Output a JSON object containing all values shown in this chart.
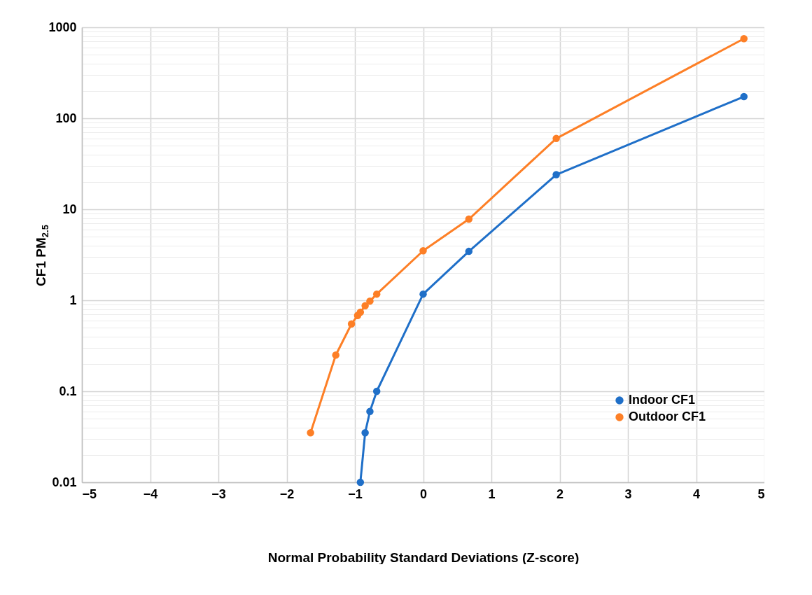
{
  "chart_data": {
    "type": "line",
    "xlabel": "Normal Probability Standard Deviations (Z-score)",
    "ylabel": "CF1 PM$_{2.5}$",
    "log": "y",
    "xlim": [
      -5,
      5
    ],
    "xticks": [
      {
        "value": -5,
        "label": "−5"
      },
      {
        "value": -4,
        "label": "−4"
      },
      {
        "value": -3,
        "label": "−3"
      },
      {
        "value": -2,
        "label": "−2"
      },
      {
        "value": -1,
        "label": "−1"
      },
      0,
      1,
      2,
      3,
      4,
      5
    ],
    "ylim": [
      0.01,
      1000
    ],
    "yticks": [
      0.01,
      0.1,
      1,
      10,
      100,
      1000
    ],
    "grid": true,
    "legend": "bottom right",
    "marker": "circle",
    "line_style": "solid",
    "series": [
      {
        "name": "Indoor CF1",
        "color": "#1f6fc8",
        "x": [
          -0.92,
          -0.85,
          -0.78,
          -0.68,
          0,
          0.67,
          1.95,
          4.7
        ],
        "values": [
          0.01,
          0.035,
          0.06,
          0.1,
          1.17,
          3.45,
          24,
          173
        ]
      },
      {
        "name": "Outdoor CF1",
        "color": "#fd7f26",
        "x": [
          -1.65,
          -1.28,
          -1.05,
          -0.96,
          -0.92,
          -0.85,
          -0.78,
          -0.68,
          0,
          0.67,
          1.95,
          4.7
        ],
        "values": [
          0.035,
          0.25,
          0.55,
          0.68,
          0.74,
          0.87,
          0.98,
          1.17,
          3.5,
          7.8,
          60,
          750
        ]
      }
    ]
  }
}
